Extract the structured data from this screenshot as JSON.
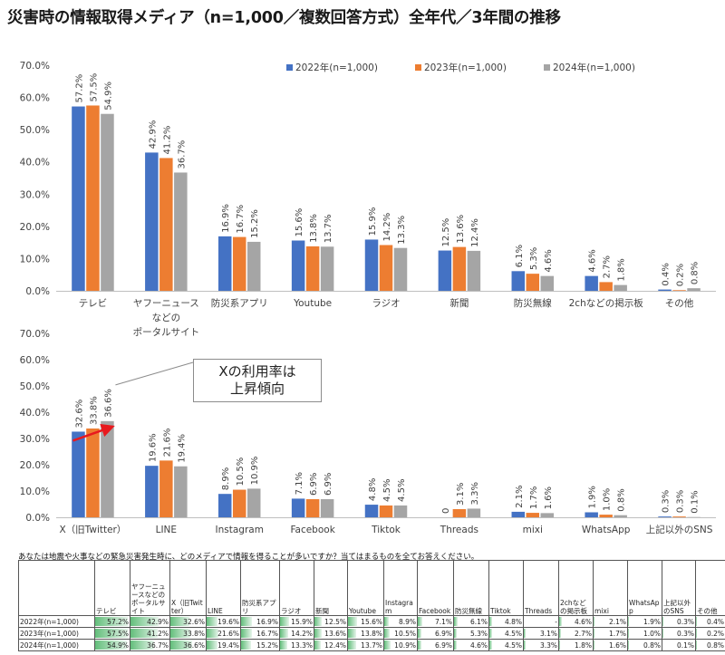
{
  "title": "災害時の情報取得メディア（n=1,000／複数回答方式）全年代／3年間の推移",
  "colors": {
    "2022": "#4472c4",
    "2023": "#ed7d31",
    "2024": "#a5a5a5",
    "arrow": "#e8191e"
  },
  "callout": {
    "line1": "Xの利用率は",
    "line2": "上昇傾向"
  },
  "chart_data": [
    {
      "type": "bar",
      "yticks": [
        "70.0%",
        "60.0%",
        "50.0%",
        "40.0%",
        "30.0%",
        "20.0%",
        "10.0%",
        "0.0%"
      ],
      "ylim": [
        0,
        70
      ],
      "legend_position": "top-right",
      "categories": [
        [
          "テレビ"
        ],
        [
          "ヤフーニュース",
          "などの",
          "ポータルサイト"
        ],
        [
          "防災系アプリ"
        ],
        [
          "Youtube"
        ],
        [
          "ラジオ"
        ],
        [
          "新聞"
        ],
        [
          "防災無線"
        ],
        [
          "2chなどの掲示板"
        ],
        [
          "その他"
        ]
      ],
      "series": [
        {
          "name": "2022年(n=1,000)",
          "values": [
            57.2,
            42.9,
            16.9,
            15.6,
            15.9,
            12.5,
            6.1,
            4.6,
            0.4
          ],
          "labels": [
            "57.2%",
            "42.9%",
            "16.9%",
            "15.6%",
            "15.9%",
            "12.5%",
            "6.1%",
            "4.6%",
            "0.4%"
          ]
        },
        {
          "name": "2023年(n=1,000)",
          "values": [
            57.5,
            41.2,
            16.7,
            13.8,
            14.2,
            13.6,
            5.3,
            2.7,
            0.2
          ],
          "labels": [
            "57.5%",
            "41.2%",
            "16.7%",
            "13.8%",
            "14.2%",
            "13.6%",
            "5.3%",
            "2.7%",
            "0.2%"
          ]
        },
        {
          "name": "2024年(n=1,000)",
          "values": [
            54.9,
            36.7,
            15.2,
            13.7,
            13.3,
            12.4,
            4.6,
            1.8,
            0.8
          ],
          "labels": [
            "54.9%",
            "36.7%",
            "15.2%",
            "13.7%",
            "13.3%",
            "12.4%",
            "4.6%",
            "1.8%",
            "0.8%"
          ]
        }
      ]
    },
    {
      "type": "bar",
      "yticks": [
        "70.0%",
        "60.0%",
        "50.0%",
        "40.0%",
        "30.0%",
        "20.0%",
        "10.0%",
        "0.0%"
      ],
      "ylim": [
        0,
        70
      ],
      "categories": [
        [
          "X（旧Twitter）"
        ],
        [
          "LINE"
        ],
        [
          "Instagram"
        ],
        [
          "Facebook"
        ],
        [
          "Tiktok"
        ],
        [
          "Threads"
        ],
        [
          "mixi"
        ],
        [
          "WhatsApp"
        ],
        [
          "上記以外のSNS"
        ]
      ],
      "series": [
        {
          "name": "2022年(n=1,000)",
          "values": [
            32.6,
            19.6,
            8.9,
            7.1,
            4.8,
            0,
            2.1,
            1.9,
            0.3
          ],
          "labels": [
            "32.6%",
            "19.6%",
            "8.9%",
            "7.1%",
            "4.8%",
            "0",
            "2.1%",
            "1.9%",
            "0.3%"
          ]
        },
        {
          "name": "2023年(n=1,000)",
          "values": [
            33.8,
            21.6,
            10.5,
            6.9,
            4.5,
            3.1,
            1.7,
            1.0,
            0.3
          ],
          "labels": [
            "33.8%",
            "21.6%",
            "10.5%",
            "6.9%",
            "4.5%",
            "3.1%",
            "1.7%",
            "1.0%",
            "0.3%"
          ]
        },
        {
          "name": "2024年(n=1,000)",
          "values": [
            36.6,
            19.4,
            10.9,
            6.9,
            4.5,
            3.3,
            1.6,
            0.8,
            0.1
          ],
          "labels": [
            "36.6%",
            "19.4%",
            "10.9%",
            "6.9%",
            "4.5%",
            "3.3%",
            "1.6%",
            "0.8%",
            "0.1%"
          ]
        }
      ]
    },
    {
      "type": "table",
      "question": "あなたは地震や火事などの緊急災害発生時に、どのメディアで情報を得ることが多いですか？当てはまるものを全てお答えください。",
      "columns": [
        "",
        "テレビ",
        "ヤフーニュースなどのポータルサイト",
        "X（旧Twitter）",
        "LINE",
        "防災系アプリ",
        "ラジオ",
        "新聞",
        "Youtube",
        "Instagram",
        "Facebook",
        "防災無線",
        "Tiktok",
        "Threads",
        "2chなどの掲示板",
        "mixi",
        "WhatsApp",
        "上記以外のSNS",
        "その他"
      ],
      "rows": [
        {
          "label": "2022年(n=1,000)",
          "cells": [
            "57.2%",
            "42.9%",
            "32.6%",
            "19.6%",
            "16.9%",
            "15.9%",
            "12.5%",
            "15.6%",
            "8.9%",
            "7.1%",
            "6.1%",
            "4.8%",
            "-",
            "4.6%",
            "2.1%",
            "1.9%",
            "0.3%",
            "0.4%"
          ],
          "values": [
            57.2,
            42.9,
            32.6,
            19.6,
            16.9,
            15.9,
            12.5,
            15.6,
            8.9,
            7.1,
            6.1,
            4.8,
            0,
            4.6,
            2.1,
            1.9,
            0.3,
            0.4
          ]
        },
        {
          "label": "2023年(n=1,000)",
          "cells": [
            "57.5%",
            "41.2%",
            "33.8%",
            "21.6%",
            "16.7%",
            "14.2%",
            "13.6%",
            "13.8%",
            "10.5%",
            "6.9%",
            "5.3%",
            "4.5%",
            "3.1%",
            "2.7%",
            "1.7%",
            "1.0%",
            "0.3%",
            "0.2%"
          ],
          "values": [
            57.5,
            41.2,
            33.8,
            21.6,
            16.7,
            14.2,
            13.6,
            13.8,
            10.5,
            6.9,
            5.3,
            4.5,
            3.1,
            2.7,
            1.7,
            1.0,
            0.3,
            0.2
          ]
        },
        {
          "label": "2024年(n=1,000)",
          "cells": [
            "54.9%",
            "36.7%",
            "36.6%",
            "19.4%",
            "15.2%",
            "13.3%",
            "12.4%",
            "13.7%",
            "10.9%",
            "6.9%",
            "4.6%",
            "4.5%",
            "3.3%",
            "1.8%",
            "1.6%",
            "0.8%",
            "0.1%",
            "0.8%"
          ],
          "values": [
            54.9,
            36.7,
            36.6,
            19.4,
            15.2,
            13.3,
            12.4,
            13.7,
            10.9,
            6.9,
            4.6,
            4.5,
            3.3,
            1.8,
            1.6,
            0.8,
            0.1,
            0.8
          ]
        }
      ]
    }
  ]
}
